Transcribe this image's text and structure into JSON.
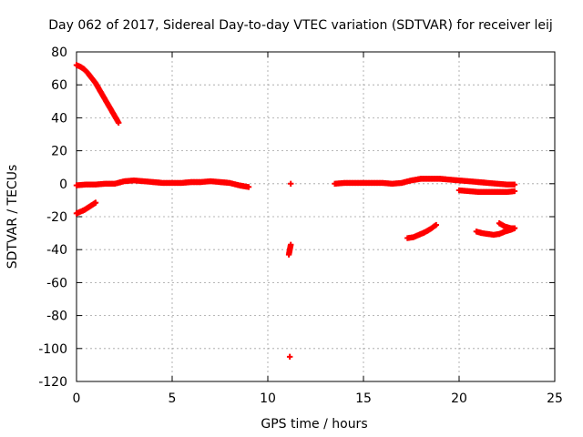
{
  "chart_data": {
    "type": "scatter",
    "title": "Day 062 of 2017, Sidereal Day-to-day VTEC variation (SDTVAR) for receiver leij",
    "xlabel": "GPS time / hours",
    "ylabel": "SDTVAR / TECUs",
    "xlim": [
      0,
      25
    ],
    "ylim": [
      -120,
      80
    ],
    "xticks": [
      0,
      5,
      10,
      15,
      20,
      25
    ],
    "yticks": [
      80,
      60,
      40,
      20,
      0,
      -20,
      -40,
      -60,
      -80,
      -100,
      -120
    ],
    "grid": true,
    "legend": "none",
    "marker_color": "#ff0000",
    "segments": [
      {
        "x": [
          0.0,
          0.2,
          0.4,
          0.6,
          0.8,
          1.0,
          1.2,
          1.4,
          1.6,
          1.8,
          2.0,
          2.2
        ],
        "y": [
          72,
          71,
          69.5,
          67,
          64,
          61,
          57,
          53,
          49,
          45,
          41,
          37
        ]
      },
      {
        "x": [
          0.0,
          0.5,
          1.0,
          1.5,
          2.0,
          2.5,
          3.0,
          3.5,
          4.0,
          4.5,
          5.0,
          5.5,
          6.0,
          6.5,
          7.0,
          7.5,
          8.0,
          8.5,
          9.0
        ],
        "y": [
          -1,
          -0.5,
          -0.5,
          0,
          0,
          1.5,
          2,
          1.5,
          1,
          0.5,
          0.5,
          0.5,
          1,
          1,
          1.5,
          1,
          0.5,
          -1,
          -2
        ]
      },
      {
        "x": [
          0.0,
          0.2,
          0.4,
          0.6,
          0.8,
          1.0
        ],
        "y": [
          -18,
          -17,
          -16,
          -14.5,
          -13,
          -11.5
        ]
      },
      {
        "x": [
          11.1,
          11.15,
          11.2
        ],
        "y": [
          -43,
          -40,
          -37
        ]
      },
      {
        "x": [
          11.2
        ],
        "y": [
          0
        ]
      },
      {
        "x": [
          11.15
        ],
        "y": [
          -105
        ]
      },
      {
        "x": [
          13.5,
          14.0,
          14.5,
          15.0,
          15.5,
          16.0,
          16.5,
          17.0,
          17.5,
          18.0,
          18.5,
          19.0,
          19.5,
          20.0,
          20.5,
          21.0,
          21.5,
          22.0,
          22.5,
          22.9
        ],
        "y": [
          0,
          0.5,
          0.5,
          0.5,
          0.5,
          0.5,
          0,
          0.5,
          2,
          3,
          3,
          3,
          2.5,
          2,
          1.5,
          1,
          0.5,
          0,
          -0.5,
          -0.5
        ]
      },
      {
        "x": [
          20.0,
          20.5,
          21.0,
          21.5,
          22.0,
          22.5,
          22.9
        ],
        "y": [
          -4,
          -4.5,
          -5,
          -5,
          -5,
          -5,
          -4.5
        ]
      },
      {
        "x": [
          17.3,
          17.6,
          17.9,
          18.2,
          18.5,
          18.8
        ],
        "y": [
          -33,
          -32.5,
          -31,
          -29.5,
          -27.5,
          -25
        ]
      },
      {
        "x": [
          20.9,
          21.2,
          21.5,
          21.8,
          22.1,
          22.4,
          22.7,
          22.9
        ],
        "y": [
          -29,
          -30,
          -30.5,
          -31,
          -30.5,
          -29,
          -28,
          -27
        ]
      },
      {
        "x": [
          22.1,
          22.4,
          22.7,
          22.9
        ],
        "y": [
          -24,
          -26,
          -27,
          -27
        ]
      }
    ]
  }
}
